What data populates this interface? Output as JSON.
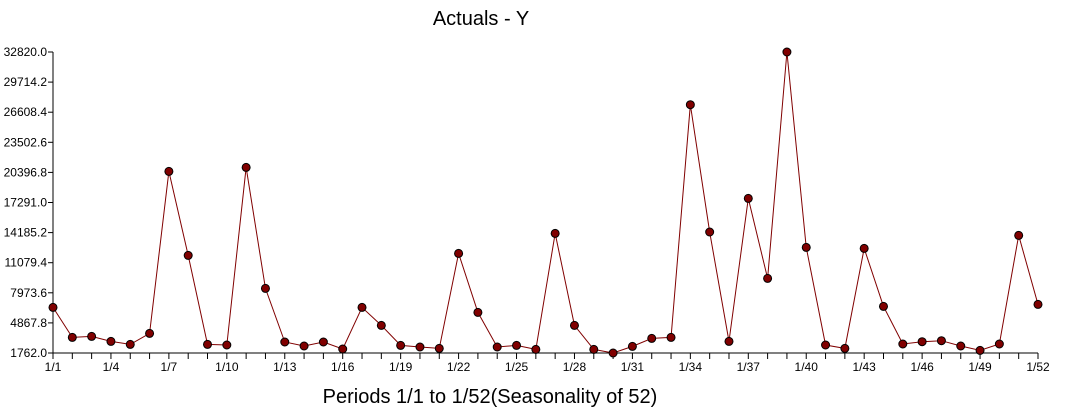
{
  "chart_data": {
    "type": "line",
    "title": "Actuals - Y",
    "xlabel": "Periods 1/1 to 1/52(Seasonality of 52)",
    "ylabel": "",
    "ylim": [
      1762.0,
      32820.0
    ],
    "yticks": [
      "1762.0",
      "4867.8",
      "7973.6",
      "11079.4",
      "14185.2",
      "17291.0",
      "20396.8",
      "23502.6",
      "26608.4",
      "29714.2",
      "32820.0"
    ],
    "x_tick_labels": [
      "1/1",
      "1/4",
      "1/7",
      "1/10",
      "1/13",
      "1/16",
      "1/19",
      "1/22",
      "1/25",
      "1/28",
      "1/31",
      "1/34",
      "1/37",
      "1/40",
      "1/43",
      "1/46",
      "1/49",
      "1/52"
    ],
    "grid": false,
    "series": [
      {
        "name": "Actuals - Y",
        "color": "#800000",
        "x": [
          "1/1",
          "1/2",
          "1/3",
          "1/4",
          "1/5",
          "1/6",
          "1/7",
          "1/8",
          "1/9",
          "1/10",
          "1/11",
          "1/12",
          "1/13",
          "1/14",
          "1/15",
          "1/16",
          "1/17",
          "1/18",
          "1/19",
          "1/20",
          "1/21",
          "1/22",
          "1/23",
          "1/24",
          "1/25",
          "1/26",
          "1/27",
          "1/28",
          "1/29",
          "1/30",
          "1/31",
          "1/32",
          "1/33",
          "1/34",
          "1/35",
          "1/36",
          "1/37",
          "1/38",
          "1/39",
          "1/40",
          "1/41",
          "1/42",
          "1/43",
          "1/44",
          "1/45",
          "1/46",
          "1/47",
          "1/48",
          "1/49",
          "1/50",
          "1/51",
          "1/52"
        ],
        "values": [
          6467,
          3372,
          3475,
          2959,
          2649,
          3784,
          20500,
          11832,
          2649,
          2587,
          20912,
          8427,
          2897,
          2484,
          2897,
          2175,
          6467,
          4610,
          2546,
          2381,
          2237,
          12039,
          5951,
          2381,
          2546,
          2133,
          14102,
          4610,
          2133,
          1762,
          2443,
          3268,
          3372,
          27382,
          14247,
          2959,
          17714,
          9459,
          32820,
          12658,
          2587,
          2237,
          12555,
          6570,
          2691,
          2928,
          3031,
          2484,
          2030,
          2691,
          13896,
          6777
        ]
      }
    ]
  }
}
